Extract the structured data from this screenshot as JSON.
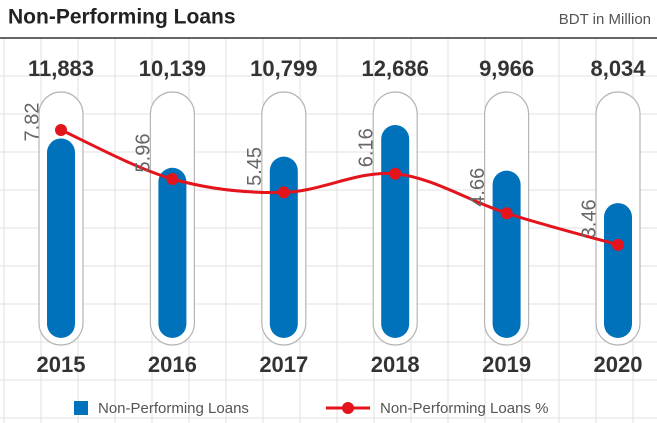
{
  "chart_data": {
    "type": "bar",
    "title": "Non-Performing Loans",
    "subtitle": "BDT in Million",
    "categories": [
      "2015",
      "2016",
      "2017",
      "2018",
      "2019",
      "2020"
    ],
    "series": [
      {
        "name": "Non-Performing Loans",
        "color": "#0072bc",
        "values": [
          11883,
          10139,
          10799,
          12686,
          9966,
          8034
        ],
        "value_labels": [
          "11,883",
          "10,139",
          "10,799",
          "12,686",
          "9,966",
          "8,034"
        ]
      },
      {
        "name": "Non-Performing Loans %",
        "type": "line",
        "color": "#e3141c",
        "values": [
          7.82,
          5.96,
          5.45,
          6.16,
          4.66,
          3.46
        ]
      }
    ]
  }
}
